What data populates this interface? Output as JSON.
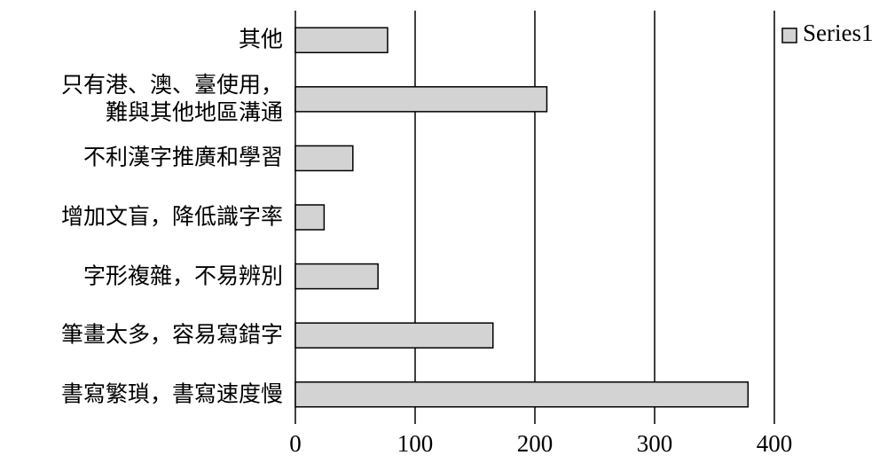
{
  "chart_data": {
    "type": "barh",
    "categories": [
      "其他",
      "只有港、澳、臺使用，\n難與其他地區溝通",
      "不利漢字推廣和學習",
      "增加文盲，降低識字率",
      "字形複雜，不易辨別",
      "筆畫太多，容易寫錯字",
      "書寫繁瑣，書寫速度慢"
    ],
    "series": [
      {
        "name": "Series1",
        "color": "#d3d3d3",
        "values": [
          77,
          210,
          48,
          24,
          69,
          165,
          378
        ]
      }
    ],
    "xlim": [
      0,
      400
    ],
    "xticks": [
      0,
      100,
      200,
      300,
      400
    ],
    "grid": true,
    "legend": "top-right"
  }
}
